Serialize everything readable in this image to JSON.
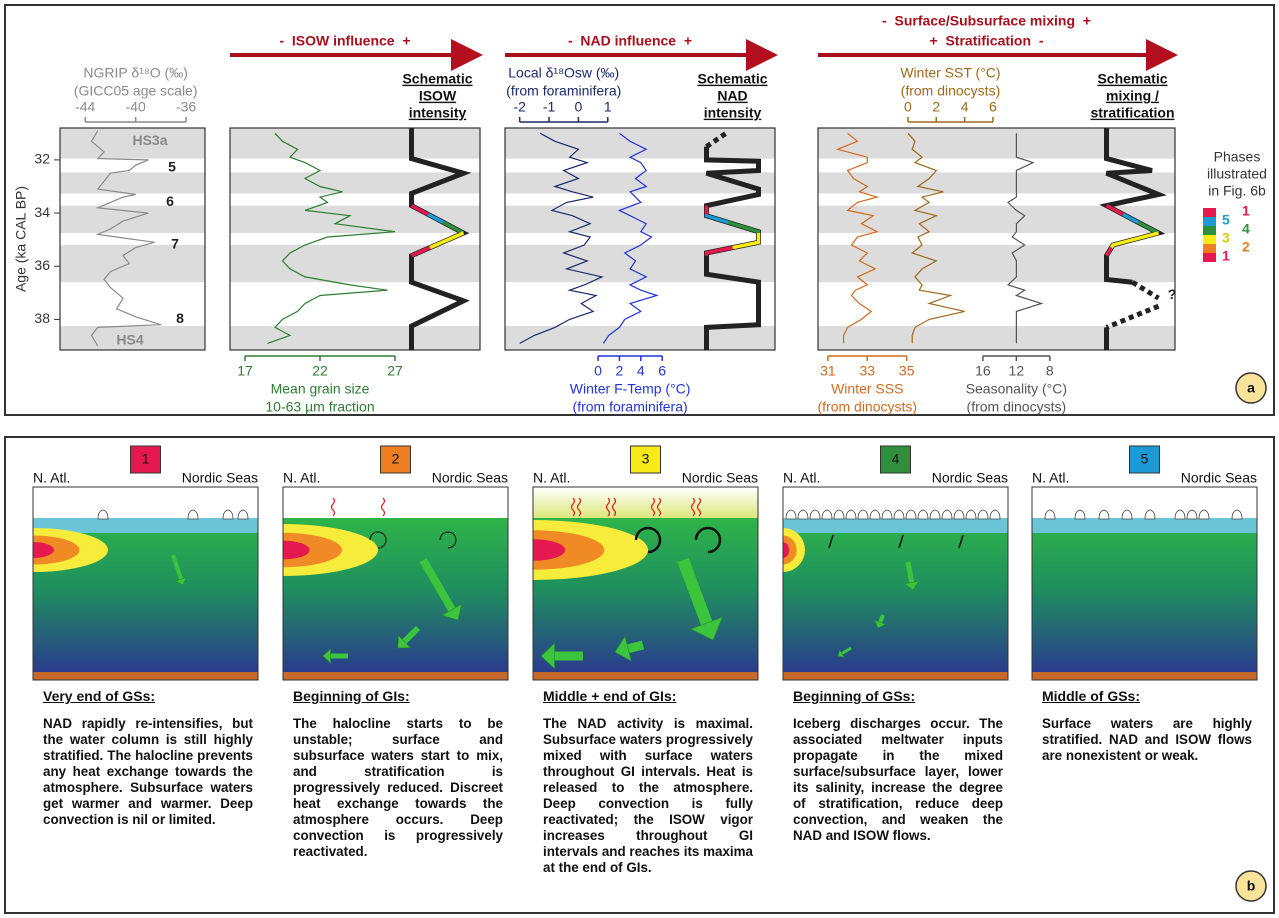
{
  "chart_data": [
    {
      "type": "line",
      "ylabel": "Age (ka CAL BP)",
      "ylim": [
        30.8,
        39.15
      ],
      "yticks": [
        32,
        34,
        36,
        38
      ],
      "stadial_intervals": [
        [
          30.8,
          31.95
        ],
        [
          32.47,
          33.26
        ],
        [
          33.72,
          34.75
        ],
        [
          35.2,
          36.6
        ],
        [
          38.25,
          39.15
        ]
      ],
      "series": [
        {
          "color": "#8a8a8a",
          "axis": "top",
          "label": [
            "NGRIP δ¹⁸O (‰)",
            "(GICC05 age scale)"
          ],
          "xlim": [
            -46,
            -34.5
          ],
          "xticks": [
            -44,
            -40,
            -36
          ],
          "ages": [
            30.9,
            31.3,
            31.7,
            31.95,
            32.0,
            32.2,
            32.4,
            32.5,
            32.8,
            33.1,
            33.3,
            33.4,
            33.6,
            33.8,
            34.0,
            34.3,
            34.6,
            34.8,
            35.0,
            35.1,
            35.3,
            35.6,
            35.9,
            36.2,
            36.5,
            36.8,
            37.2,
            37.6,
            37.9,
            38.2,
            38.3,
            38.6,
            39.0
          ],
          "values": [
            -43,
            -43.5,
            -42.5,
            -43,
            -39,
            -40,
            -40.5,
            -42,
            -42.5,
            -43,
            -40,
            -41,
            -42,
            -43,
            -39,
            -41,
            -42,
            -43,
            -40,
            -38.5,
            -40,
            -41,
            -40.5,
            -42,
            -42.5,
            -42,
            -41,
            -41.5,
            -40,
            -38,
            -43,
            -43.5,
            -43
          ]
        }
      ],
      "annotations": [
        {
          "text": "HS3a",
          "age": 31.3
        },
        {
          "text": "5",
          "age": 32.3
        },
        {
          "text": "6",
          "age": 33.6
        },
        {
          "text": "7",
          "age": 35.2
        },
        {
          "text": "8",
          "age": 38.0
        },
        {
          "text": "HS4",
          "age": 38.8
        }
      ]
    },
    {
      "type": "line",
      "header": [
        "-  ISOW influence  +"
      ],
      "schematic_title": [
        "Schematic",
        "ISOW",
        "intensity"
      ],
      "series": [
        {
          "color": "#2e7d32",
          "axis": "bottom",
          "label": [
            "Mean grain size",
            "10-63 µm fraction"
          ],
          "xlim": [
            16,
            27
          ],
          "xticks": [
            17,
            22,
            27
          ],
          "ages": [
            31.0,
            31.3,
            31.6,
            31.9,
            32.1,
            32.4,
            32.7,
            33.0,
            33.2,
            33.4,
            33.6,
            33.9,
            34.1,
            34.4,
            34.7,
            34.9,
            35.2,
            35.5,
            35.8,
            36.1,
            36.4,
            36.7,
            36.9,
            37.1,
            37.4,
            37.7,
            38.0,
            38.3,
            38.6,
            38.9
          ],
          "values": [
            19,
            19.5,
            20.5,
            20,
            21,
            22,
            21,
            22,
            23.5,
            22,
            22.5,
            21,
            24,
            23,
            27,
            22.5,
            21,
            20,
            19.5,
            20,
            21,
            24,
            26.5,
            22,
            21,
            20.5,
            19.5,
            19,
            20,
            18.5
          ]
        }
      ]
    },
    {
      "type": "line",
      "header": [
        "-  NAD influence  +"
      ],
      "schematic_title": [
        "Schematic",
        "NAD",
        "intensity"
      ],
      "series": [
        {
          "color": "#1b2a6b",
          "axis": "top",
          "label": [
            "Local δ¹⁸Osw (‰)",
            "(from foraminifera)"
          ],
          "xlim": [
            -2.5,
            3.8
          ],
          "xticks": [
            -2,
            -1,
            0,
            1
          ],
          "ages": [
            31.0,
            31.3,
            31.6,
            31.9,
            32.1,
            32.4,
            32.7,
            33.0,
            33.2,
            33.4,
            33.6,
            33.9,
            34.1,
            34.4,
            34.7,
            34.9,
            35.2,
            35.5,
            35.8,
            36.1,
            36.4,
            36.7,
            36.9,
            37.1,
            37.4,
            37.7,
            38.0,
            38.3,
            38.6,
            38.9
          ],
          "values": [
            -1.3,
            -0.8,
            0,
            -0.3,
            0.3,
            -0.5,
            0,
            -0.8,
            -0.2,
            0.5,
            -0.4,
            -0.9,
            -0.2,
            0.4,
            -0.3,
            0.4,
            0.2,
            -0.5,
            0.3,
            -0.4,
            0.8,
            0.2,
            -0.3,
            0.6,
            0.1,
            0.5,
            -0.3,
            -0.8,
            -1.5,
            -2
          ]
        },
        {
          "color": "#2233dd",
          "axis": "bottom",
          "label": [
            "Winter F-Temp (°C)",
            "(from foraminifera)"
          ],
          "xlim": [
            -8.7,
            8.6
          ],
          "xticks": [
            0,
            2,
            4,
            6
          ],
          "ages": [
            31.0,
            31.3,
            31.6,
            31.9,
            32.1,
            32.4,
            32.7,
            33.0,
            33.2,
            33.4,
            33.6,
            33.9,
            34.1,
            34.4,
            34.7,
            34.9,
            35.2,
            35.5,
            35.8,
            36.1,
            36.4,
            36.7,
            36.9,
            37.1,
            37.4,
            37.7,
            38.0,
            38.3,
            38.6,
            38.9
          ],
          "values": [
            2,
            3,
            4.5,
            3,
            4,
            4.5,
            3.5,
            4.5,
            3,
            3.5,
            4,
            2,
            3,
            4.5,
            4,
            5,
            4,
            2.5,
            3.5,
            3,
            4.5,
            3,
            4,
            5.5,
            3,
            4,
            2.5,
            2,
            1,
            0.5
          ]
        }
      ]
    },
    {
      "type": "line",
      "header": [
        "-  Surface/Subsurface mixing  +",
        "+  Stratification  -"
      ],
      "schematic_title": [
        "Schematic",
        "mixing /",
        "stratification"
      ],
      "series": [
        {
          "color": "#d2691e",
          "axis": "bottom",
          "label": [
            "Winter SSS",
            "(from dinocysts)"
          ],
          "xlim": [
            30.5,
            44.3
          ],
          "xticks": [
            31,
            33,
            35
          ],
          "ages": [
            31.0,
            31.3,
            31.6,
            31.9,
            32.1,
            32.4,
            32.7,
            33.0,
            33.2,
            33.4,
            33.6,
            33.9,
            34.1,
            34.4,
            34.7,
            34.9,
            35.2,
            35.5,
            35.8,
            36.1,
            36.4,
            36.7,
            36.9,
            37.1,
            37.4,
            37.7,
            38.0,
            38.3,
            38.6,
            38.9
          ],
          "values": [
            32,
            32.5,
            31.5,
            33,
            33,
            32,
            32.3,
            33,
            32.6,
            33.5,
            32.5,
            32,
            33.3,
            32.7,
            33.5,
            32.5,
            32.2,
            33,
            32.6,
            33.4,
            32.5,
            33,
            32.4,
            32.2,
            32.6,
            33.2,
            32.7,
            32,
            31.8,
            31.8
          ]
        },
        {
          "color": "#a0681a",
          "axis": "top",
          "label": [
            "Winter SST (°C)",
            "(from dinocysts)"
          ],
          "xlim": [
            -6.35,
            12.85
          ],
          "xticks": [
            0,
            2,
            4,
            6
          ],
          "ages": [
            31.0,
            31.3,
            31.6,
            31.9,
            32.1,
            32.4,
            32.7,
            33.0,
            33.2,
            33.4,
            33.6,
            33.9,
            34.1,
            34.4,
            34.7,
            34.9,
            35.2,
            35.5,
            35.8,
            36.1,
            36.4,
            36.7,
            36.9,
            37.1,
            37.4,
            37.7,
            38.0,
            38.3,
            38.6,
            38.9
          ],
          "values": [
            0,
            0.5,
            0.3,
            1,
            0.5,
            2,
            1.5,
            0.7,
            2.5,
            1,
            1.5,
            0.5,
            2,
            0.8,
            1.5,
            0.7,
            1,
            0.3,
            2,
            1,
            0.5,
            1,
            0.8,
            3,
            1.5,
            4,
            1.5,
            0.5,
            0.3,
            0.3
          ]
        },
        {
          "color": "#555555",
          "axis": "bottom",
          "label": [
            "Seasonality (°C)",
            "(from dinocysts)"
          ],
          "xlim": [
            35.7,
            3.2
          ],
          "xticks": [
            16,
            12,
            8
          ],
          "ages": [
            31.0,
            31.3,
            31.6,
            31.9,
            32.1,
            32.4,
            32.7,
            33.0,
            33.2,
            33.4,
            33.6,
            33.9,
            34.1,
            34.4,
            34.7,
            34.9,
            35.2,
            35.5,
            35.8,
            36.1,
            36.4,
            36.7,
            36.9,
            37.1,
            37.4,
            37.7,
            38.0,
            38.3,
            38.6,
            38.9
          ],
          "values": [
            12,
            12,
            12,
            12,
            10,
            12,
            12,
            12,
            12,
            12,
            13,
            12,
            11,
            12,
            12,
            12.5,
            11,
            12.5,
            12,
            12,
            12,
            13,
            11,
            12,
            9,
            12,
            12,
            12,
            12,
            12
          ]
        }
      ]
    }
  ],
  "phase_legend": {
    "title": [
      "Phases",
      "illustrated",
      "in Fig. 6b"
    ],
    "items": [
      {
        "label": "1",
        "color": "#e5194f"
      },
      {
        "label": "5",
        "color": "#1b9ad6"
      },
      {
        "label": "4",
        "color": "#2f8f3c"
      },
      {
        "label": "3",
        "color": "#f6eb16"
      },
      {
        "label": "2",
        "color": "#ef7d22"
      },
      {
        "label": "1",
        "color": "#e5194f"
      }
    ]
  },
  "panel_labels": [
    "a",
    "b"
  ],
  "panel_b": {
    "left_label": "N. Atl.",
    "right_label": "Nordic Seas",
    "phases": [
      {
        "number": "1",
        "color": "#e5194f",
        "title": "Very end of GSs:",
        "text": "NAD rapidly re-intensifies, but the water column is still highly stratified. The halocline prevents any heat exchange towards the atmosphere. Subsurface waters get warmer and warmer. Deep convection is nil or limited."
      },
      {
        "number": "2",
        "color": "#ef7d22",
        "title": "Beginning of GIs:",
        "text": "The halocline starts to be unstable; surface and subsurface waters start to mix, and stratification is progressively reduced. Discreet heat exchange towards the atmosphere occurs. Deep convection is progressively reactivated."
      },
      {
        "number": "3",
        "color": "#f6eb16",
        "title": "Middle + end of GIs:",
        "text": "The NAD activity is maximal. Subsurface waters progressively mixed with surface waters throughout GI intervals. Heat is released to the atmosphere. Deep convection is fully reactivated; the ISOW vigor increases throughout GI intervals and reaches its maxima at the end of GIs."
      },
      {
        "number": "4",
        "color": "#2f8f3c",
        "title": "Beginning of GSs:",
        "text": "Iceberg discharges occur. The associated meltwater inputs propagate in the mixed surface/subsurface layer, lower its salinity, increase the degree of stratification, reduce deep convection, and weaken the NAD and ISOW flows."
      },
      {
        "number": "5",
        "color": "#1b9ad6",
        "title": "Middle of GSs:",
        "text": "Surface waters are highly stratified. NAD and ISOW flows are nonexistent or weak."
      }
    ]
  }
}
